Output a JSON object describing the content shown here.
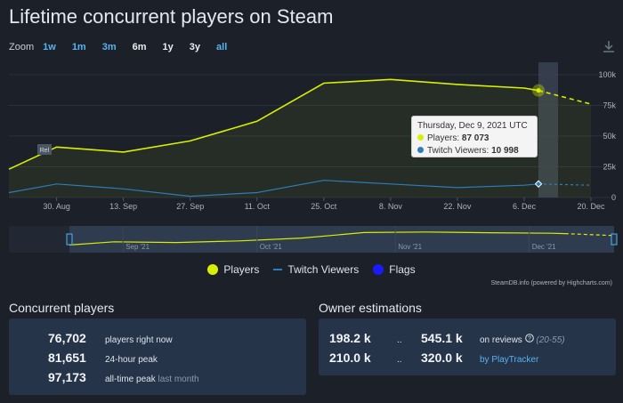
{
  "page": {
    "title": "Lifetime concurrent players on Steam"
  },
  "zoom": {
    "label": "Zoom",
    "options": [
      "1w",
      "1m",
      "3m",
      "6m",
      "1y",
      "3y",
      "all"
    ]
  },
  "chart_data": {
    "type": "line",
    "title": "",
    "x": [
      "2021-08-20",
      "2021-08-30",
      "2021-09-13",
      "2021-09-27",
      "2021-10-11",
      "2021-10-25",
      "2021-11-08",
      "2021-11-22",
      "2021-12-06",
      "2021-12-09",
      "2021-12-20"
    ],
    "series": [
      {
        "name": "Players",
        "values": [
          23000,
          41000,
          37000,
          46000,
          62000,
          93000,
          96000,
          92000,
          89000,
          87073,
          76000
        ]
      },
      {
        "name": "Twitch Viewers",
        "values": [
          4000,
          11000,
          7000,
          1000,
          4000,
          14000,
          11000,
          8000,
          10000,
          10998,
          10000
        ]
      }
    ],
    "x_tick_labels": [
      "30. Aug",
      "13. Sep",
      "27. Sep",
      "11. Oct",
      "25. Oct",
      "8. Nov",
      "22. Nov",
      "6. Dec",
      "20. Dec"
    ],
    "y_tick_labels": [
      "100k",
      "75k",
      "50k",
      "25k",
      "0"
    ],
    "ylim": [
      0,
      110000
    ],
    "flag_label": "Rel",
    "navigator_labels": [
      "Sep '21",
      "Oct '21",
      "Nov '21",
      "Dec '21"
    ],
    "grid": true,
    "legend": [
      "Players",
      "Twitch Viewers",
      "Flags"
    ],
    "legend_position": "bottom",
    "colors": {
      "players": "#d8f000",
      "twitch": "#2c7db8",
      "flags": "#1a1aff"
    }
  },
  "tooltip": {
    "date": "Thursday, Dec 9, 2021 UTC",
    "players_label": "Players:",
    "players_value": "87 073",
    "twitch_label": "Twitch Viewers:",
    "twitch_value": "10 998"
  },
  "legend": {
    "players": "Players",
    "twitch": "Twitch Viewers",
    "flags": "Flags"
  },
  "credit": "SteamDB.info (powered by Highcharts.com)",
  "concurrent": {
    "title": "Concurrent players",
    "rows": [
      {
        "value": "76,702",
        "label": "players right now",
        "suffix": ""
      },
      {
        "value": "81,651",
        "label": "24-hour peak",
        "suffix": ""
      },
      {
        "value": "97,173",
        "label": "all-time peak",
        "suffix": "last month"
      }
    ]
  },
  "owners": {
    "title": "Owner estimations",
    "rows": [
      {
        "low": "198.2 k",
        "sep": "..",
        "high": "545.1 k",
        "label": "on reviews",
        "note": "(20-55)"
      },
      {
        "low": "210.0 k",
        "sep": "..",
        "high": "320.0 k",
        "label": "by PlayTracker",
        "note": ""
      }
    ]
  }
}
